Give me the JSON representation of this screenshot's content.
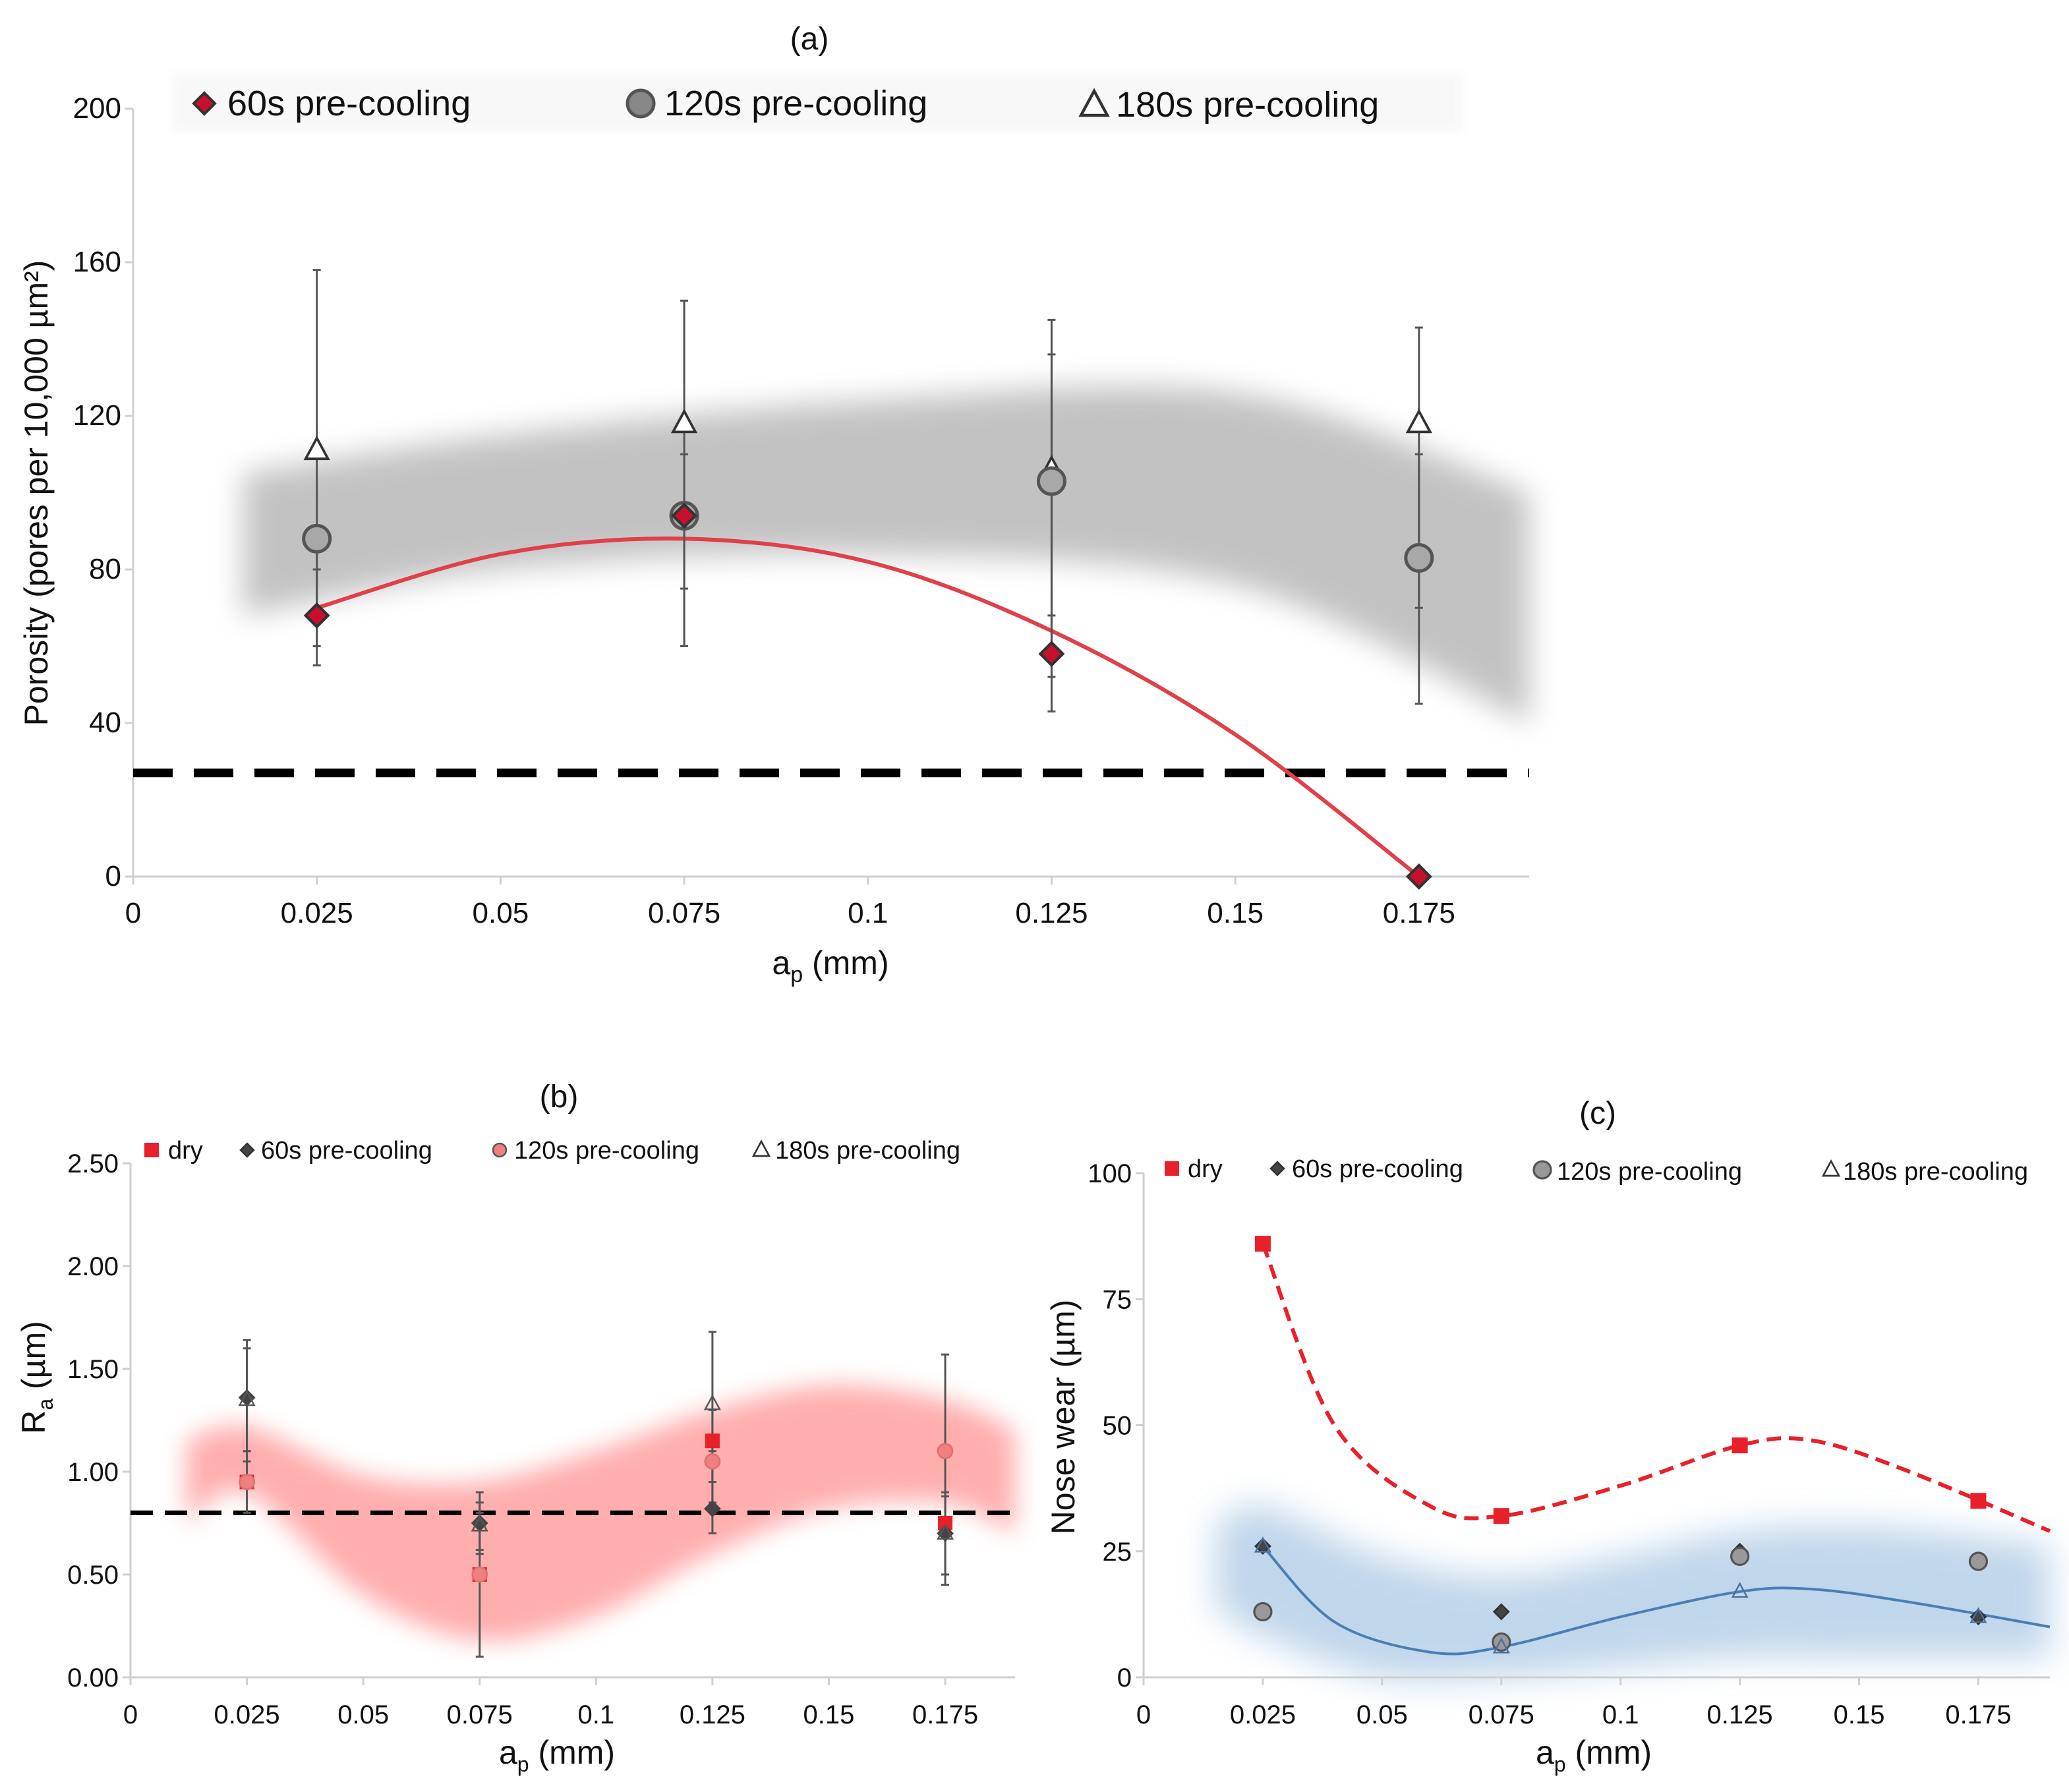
{
  "chart_data": [
    {
      "id": "a",
      "type": "scatter",
      "title": "(a)",
      "xlabel_main": "a",
      "xlabel_sub": "p",
      "xlabel_unit": " (mm)",
      "ylabel": "Porosity (pores per 10,000 µm²)",
      "xlim": [
        0,
        0.19
      ],
      "ylim": [
        0,
        200
      ],
      "xticks": [
        0,
        0.025,
        0.05,
        0.075,
        0.1,
        0.125,
        0.15,
        0.175
      ],
      "xtick_labels": [
        "0",
        "0.025",
        "0.05",
        "0.075",
        "0.1",
        "0.125",
        "0.15",
        "0.175"
      ],
      "yticks": [
        0,
        40,
        80,
        120,
        160,
        200
      ],
      "ytick_labels": [
        "0",
        "40",
        "80",
        "120",
        "160",
        "200"
      ],
      "reference_line": 27,
      "series": [
        {
          "name": "60s pre-cooling",
          "marker": "diamond",
          "color": "#c8102e",
          "x": [
            0.025,
            0.075,
            0.125,
            0.175
          ],
          "y": [
            68,
            94,
            58,
            0
          ],
          "yerr_low": [
            55,
            null,
            43,
            null
          ],
          "yerr_high": [
            80,
            null,
            68,
            null
          ]
        },
        {
          "name": "120s pre-cooling",
          "marker": "circle",
          "color": "#888888",
          "x": [
            0.025,
            0.075,
            0.125,
            0.175
          ],
          "y": [
            88,
            94,
            103,
            83
          ],
          "yerr_low": [
            null,
            60,
            52,
            45
          ],
          "yerr_high": [
            null,
            110,
            136,
            110
          ]
        },
        {
          "name": "180s pre-cooling",
          "marker": "triangle",
          "color": "#ffffff",
          "x": [
            0.025,
            0.075,
            0.125,
            0.175
          ],
          "y": [
            111,
            118,
            106,
            118
          ],
          "yerr_low": [
            60,
            75,
            60,
            70
          ],
          "yerr_high": [
            158,
            150,
            145,
            143
          ]
        }
      ],
      "fit": {
        "series": "60s pre-cooling",
        "x": [
          0.025,
          0.05,
          0.075,
          0.1,
          0.125,
          0.15,
          0.175
        ],
        "y": [
          70,
          84,
          88,
          82,
          64,
          37,
          0
        ]
      },
      "band": {
        "x": [
          0.015,
          0.05,
          0.1,
          0.15,
          0.19
        ],
        "upper": [
          105,
          115,
          124,
          126,
          100
        ],
        "lower": [
          68,
          80,
          84,
          76,
          40
        ]
      }
    },
    {
      "id": "b",
      "type": "scatter",
      "title": "(b)",
      "xlabel_main": "a",
      "xlabel_sub": "p",
      "xlabel_unit": " (mm)",
      "ylabel_main": "R",
      "ylabel_sub": "a",
      "ylabel_unit": " (µm)",
      "xlim": [
        0,
        0.19
      ],
      "ylim": [
        0,
        2.5
      ],
      "xticks": [
        0,
        0.025,
        0.05,
        0.075,
        0.1,
        0.125,
        0.15,
        0.175
      ],
      "xtick_labels": [
        "0",
        "0.025",
        "0.05",
        "0.075",
        "0.1",
        "0.125",
        "0.15",
        "0.175"
      ],
      "yticks": [
        0,
        0.5,
        1,
        1.5,
        2,
        2.5
      ],
      "ytick_labels": [
        "0.00",
        "0.50",
        "1.00",
        "1.50",
        "2.00",
        "2.50"
      ],
      "reference_line": 0.8,
      "series": [
        {
          "name": "dry",
          "marker": "square",
          "color": "#e8202a",
          "x": [
            0.025,
            0.075,
            0.125,
            0.175
          ],
          "y": [
            0.95,
            0.5,
            1.15,
            0.75
          ]
        },
        {
          "name": "60s pre-cooling",
          "marker": "diamond",
          "color": "#444444",
          "x": [
            0.025,
            0.075,
            0.125,
            0.175
          ],
          "y": [
            1.36,
            0.75,
            0.82,
            0.7
          ],
          "yerr_low": [
            1.05,
            0.62,
            0.7,
            0.45
          ],
          "yerr_high": [
            1.64,
            0.9,
            1.1,
            0.88
          ]
        },
        {
          "name": "120s pre-cooling",
          "marker": "circle",
          "color": "#f08080",
          "x": [
            0.025,
            0.075,
            0.125,
            0.175
          ],
          "y": [
            0.95,
            0.5,
            1.05,
            1.1
          ],
          "yerr_low": [
            0.8,
            0.1,
            0.85,
            0.75
          ],
          "yerr_high": [
            1.1,
            0.8,
            1.3,
            1.57
          ]
        },
        {
          "name": "180s pre-cooling",
          "marker": "triangle",
          "color": "#ffffff",
          "x": [
            0.025,
            0.075,
            0.125,
            0.175
          ],
          "y": [
            1.35,
            0.74,
            1.33,
            0.7
          ],
          "yerr_low": [
            1.1,
            0.6,
            0.95,
            0.5
          ],
          "yerr_high": [
            1.6,
            0.85,
            1.68,
            0.9
          ]
        }
      ],
      "band": {
        "x": [
          0.012,
          0.025,
          0.05,
          0.075,
          0.1,
          0.125,
          0.15,
          0.175,
          0.19
        ],
        "upper": [
          1.15,
          1.22,
          0.98,
          0.95,
          1.1,
          1.3,
          1.42,
          1.35,
          1.2
        ],
        "lower": [
          0.75,
          0.9,
          0.4,
          0.18,
          0.3,
          0.6,
          0.82,
          0.85,
          0.7
        ]
      }
    },
    {
      "id": "c",
      "type": "scatter",
      "title": "(c)",
      "xlabel_main": "a",
      "xlabel_sub": "p",
      "xlabel_unit": " (mm)",
      "ylabel": "Nose wear (µm)",
      "xlim": [
        0,
        0.19
      ],
      "ylim": [
        0,
        100
      ],
      "xticks": [
        0,
        0.025,
        0.05,
        0.075,
        0.1,
        0.125,
        0.15,
        0.175
      ],
      "xtick_labels": [
        "0",
        "0.025",
        "0.05",
        "0.075",
        "0.1",
        "0.125",
        "0.15",
        "0.175"
      ],
      "yticks": [
        0,
        25,
        50,
        75,
        100
      ],
      "ytick_labels": [
        "0",
        "25",
        "50",
        "75",
        "100"
      ],
      "series": [
        {
          "name": "dry",
          "marker": "square",
          "color": "#e8202a",
          "x": [
            0.025,
            0.075,
            0.125,
            0.175
          ],
          "y": [
            86,
            32,
            46,
            35
          ]
        },
        {
          "name": "60s pre-cooling",
          "marker": "diamond",
          "color": "#444444",
          "x": [
            0.025,
            0.075,
            0.125,
            0.175
          ],
          "y": [
            26,
            13,
            25,
            12
          ]
        },
        {
          "name": "120s pre-cooling",
          "marker": "circle",
          "color": "#999999",
          "x": [
            0.025,
            0.075,
            0.125,
            0.175
          ],
          "y": [
            13,
            7,
            24,
            23
          ]
        },
        {
          "name": "180s pre-cooling",
          "marker": "triangle",
          "color": "#ffffff",
          "x": [
            0.025,
            0.075,
            0.125,
            0.175
          ],
          "y": [
            26,
            6,
            17,
            12
          ]
        }
      ],
      "fit_dry": {
        "x": [
          0.025,
          0.04,
          0.06,
          0.075,
          0.1,
          0.125,
          0.14,
          0.16,
          0.19
        ],
        "y": [
          86,
          50,
          34,
          32,
          38,
          46,
          47,
          41,
          29
        ]
      },
      "fit_cool": {
        "x": [
          0.025,
          0.04,
          0.06,
          0.075,
          0.1,
          0.125,
          0.14,
          0.16,
          0.19
        ],
        "y": [
          26,
          11,
          5,
          6,
          12,
          17,
          17.5,
          15,
          10
        ]
      },
      "band": {
        "x": [
          0.015,
          0.025,
          0.05,
          0.075,
          0.1,
          0.125,
          0.15,
          0.175,
          0.19
        ],
        "upper": [
          30,
          34,
          24,
          20,
          24,
          29,
          30,
          28,
          26
        ],
        "lower": [
          14,
          8,
          0,
          0,
          2,
          4,
          4,
          4,
          4
        ]
      }
    }
  ]
}
